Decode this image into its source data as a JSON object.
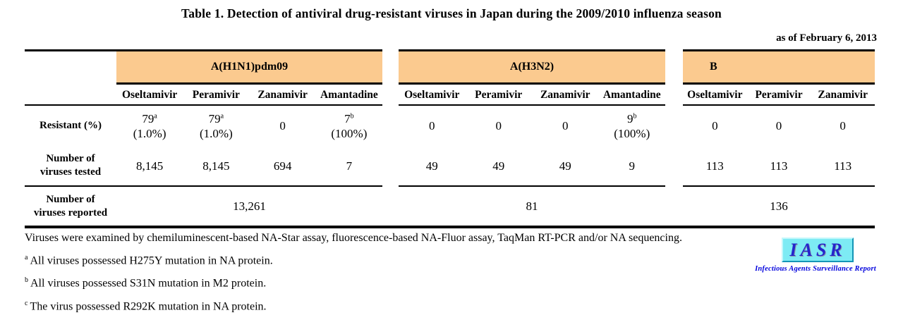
{
  "title": "Table 1. Detection of antiviral drug-resistant viruses in Japan during the 2009/2010 influenza season",
  "as_of": "as of February 6, 2013",
  "colors": {
    "band_bg": "#FBCA8F",
    "logo_bg": "#7DEBF4",
    "logo_text": "#2525CC",
    "caption_text": "#0000DD"
  },
  "table": {
    "row_labels": {
      "resistant": "Resistant (%)",
      "tested": "Number of\nviruses tested",
      "reported": "Number of\nviruses reported"
    },
    "groups": [
      {
        "label": "A(H1N1)pdm09",
        "align": "center",
        "drugs": [
          "Oseltamivir",
          "Peramivir",
          "Zanamivir",
          "Amantadine"
        ],
        "resistant": [
          {
            "main": "79",
            "sup": "a",
            "pct": "(1.0%)"
          },
          {
            "main": "79",
            "sup": "a",
            "pct": "(1.0%)"
          },
          {
            "main": "0"
          },
          {
            "main": "7",
            "sup": "b",
            "pct": "(100%)"
          }
        ],
        "tested": [
          "8,145",
          "8,145",
          "694",
          "7"
        ],
        "reported": "13,261"
      },
      {
        "label": "A(H3N2)",
        "align": "center",
        "drugs": [
          "Oseltamivir",
          "Peramivir",
          "Zanamivir",
          "Amantadine"
        ],
        "resistant": [
          {
            "main": "0"
          },
          {
            "main": "0"
          },
          {
            "main": "0"
          },
          {
            "main": "9",
            "sup": "b",
            "pct": "(100%)"
          }
        ],
        "tested": [
          "49",
          "49",
          "49",
          "9"
        ],
        "reported": "81"
      },
      {
        "label": "B",
        "align": "left",
        "drugs": [
          "Oseltamivir",
          "Peramivir",
          "Zanamivir"
        ],
        "resistant": [
          {
            "main": "0"
          },
          {
            "main": "0"
          },
          {
            "main": "0"
          }
        ],
        "tested": [
          "113",
          "113",
          "113"
        ],
        "reported": "136"
      }
    ]
  },
  "footnotes": [
    {
      "sup": "",
      "text": "Viruses were examined by chemiluminescent-based NA-Star assay, fluorescence-based NA-Fluor assay, TaqMan RT-PCR and/or NA sequencing."
    },
    {
      "sup": "a",
      "text": "All viruses possessed H275Y mutation in NA protein."
    },
    {
      "sup": "b",
      "text": "All viruses possessed S31N mutation in M2 protein."
    },
    {
      "sup": "c",
      "text": "The virus possessed R292K mutation in NA protein."
    }
  ],
  "logo": {
    "acronym": "IASR",
    "caption": "Infectious Agents Surveillance Report"
  }
}
